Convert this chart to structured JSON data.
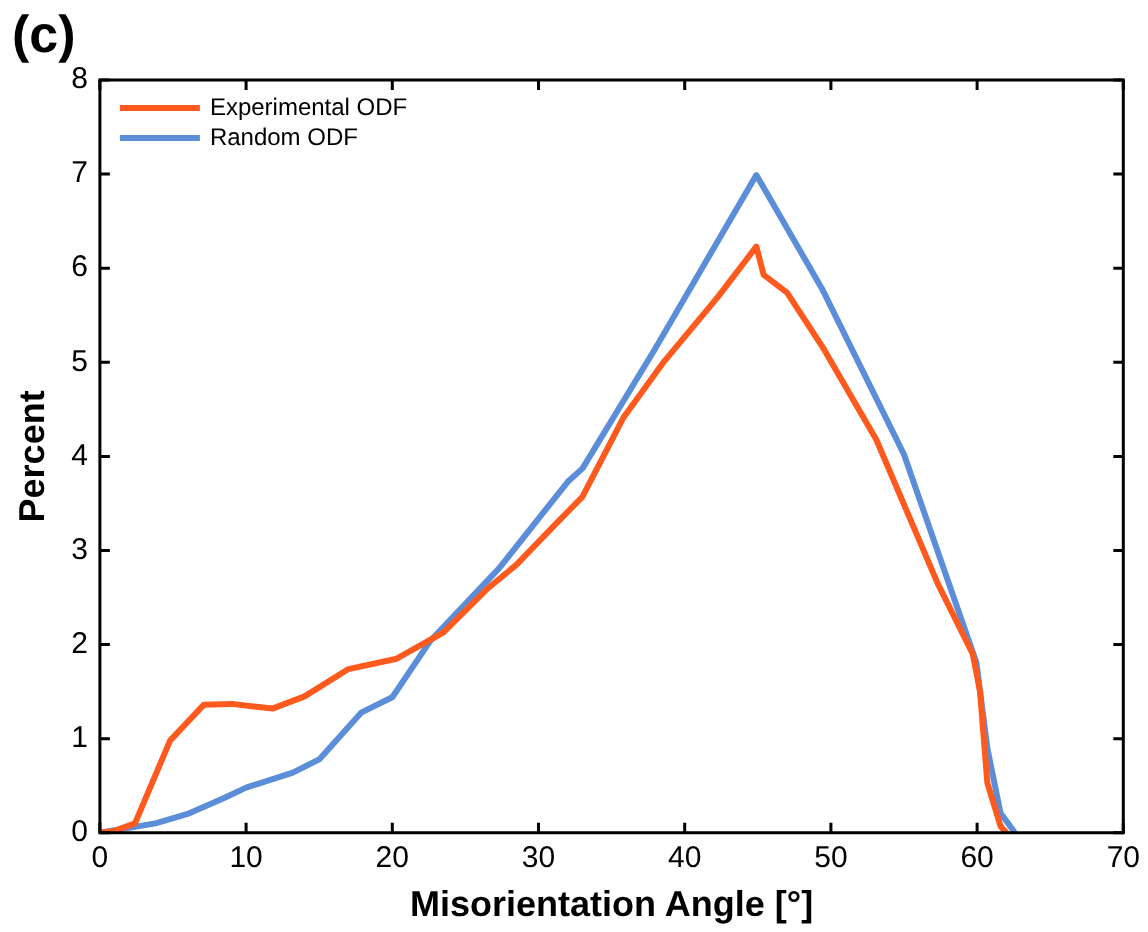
{
  "chart_data": {
    "type": "line",
    "title": "(c)",
    "xlabel": "Misorientation Angle [°]",
    "ylabel": "Percent",
    "xlim": [
      0,
      70
    ],
    "xticks": [
      0,
      10,
      20,
      30,
      40,
      50,
      60,
      70
    ],
    "ylim": [
      0,
      8
    ],
    "yticks": [
      0,
      1,
      2,
      3,
      4,
      5,
      6,
      7,
      8
    ],
    "grid": false,
    "legend": "top left",
    "marker": "none",
    "line_style": "solid",
    "series": [
      {
        "name": "Experimental ODF",
        "color": "#ff5a1e",
        "x": [
          0,
          1,
          2.4,
          4.8,
          7.1,
          9,
          11.8,
          14,
          17,
          20.3,
          23.5,
          26.4,
          28.5,
          31.1,
          33,
          35.8,
          38.6,
          42.3,
          44.9,
          45.4,
          47,
          49.4,
          53.1,
          57.3,
          59.7,
          60.2,
          60.7,
          61.6,
          62
        ],
        "values": [
          0,
          0.02,
          0.1,
          0.98,
          1.36,
          1.37,
          1.32,
          1.45,
          1.74,
          1.85,
          2.13,
          2.58,
          2.85,
          3.27,
          3.57,
          4.41,
          5.01,
          5.7,
          6.23,
          5.93,
          5.74,
          5.17,
          4.18,
          2.65,
          1.9,
          1.5,
          0.53,
          0.07,
          0
        ]
      },
      {
        "name": "Random ODF",
        "color": "#5b8dd9",
        "x": [
          0,
          3.8,
          6,
          8.5,
          10,
          13.2,
          15,
          17.9,
          20,
          22.6,
          27.3,
          32,
          33,
          38,
          44.9,
          49.4,
          55,
          59.95,
          60.7,
          61.6,
          62.5
        ],
        "values": [
          0,
          0.1,
          0.2,
          0.37,
          0.48,
          0.64,
          0.78,
          1.28,
          1.44,
          2.04,
          2.81,
          3.73,
          3.87,
          5.15,
          6.99,
          5.78,
          4.02,
          1.81,
          0.9,
          0.21,
          0.02
        ]
      }
    ]
  }
}
